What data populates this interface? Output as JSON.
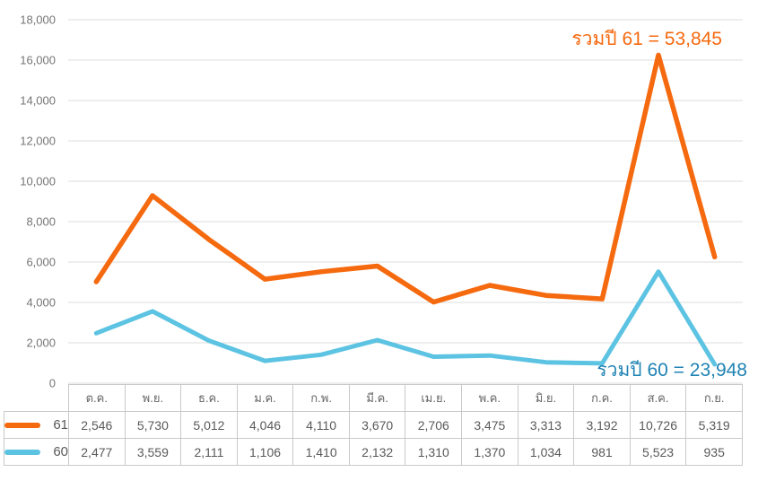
{
  "chart_data": {
    "type": "line",
    "stacked": true,
    "categories": [
      "ต.ค.",
      "พ.ย.",
      "ธ.ค.",
      "ม.ค.",
      "ก.พ.",
      "มี.ค.",
      "เม.ย.",
      "พ.ค.",
      "มิ.ย.",
      "ก.ค.",
      "ส.ค.",
      "ก.ย."
    ],
    "series": [
      {
        "name": "61",
        "color": "#F5690F",
        "values": [
          2546,
          5730,
          5012,
          4046,
          4110,
          3670,
          2706,
          3475,
          3313,
          3192,
          10726,
          5319
        ],
        "total": 53845
      },
      {
        "name": "60",
        "color": "#5CC3E2",
        "values": [
          2477,
          3559,
          2111,
          1106,
          1410,
          2132,
          1310,
          1370,
          1034,
          981,
          5523,
          935
        ],
        "total": 23948
      }
    ],
    "ylim": [
      0,
      18000
    ],
    "ytick_step": 2000,
    "ytick_labels": [
      "0",
      "2,000",
      "4,000",
      "6,000",
      "8,000",
      "10,000",
      "12,000",
      "14,000",
      "16,000",
      "18,000"
    ],
    "grid": "horizontal",
    "xlabel": "",
    "ylabel": "",
    "title": "",
    "legend_position": "table-left",
    "colors": {
      "grid": "#dcdcdc",
      "axis_text": "#757575"
    }
  },
  "annotations": {
    "total_61": {
      "text": "รวมปี 61 = 53,845",
      "color": "#F5690F"
    },
    "total_60": {
      "text": "รวมปี 60 = 23,948",
      "color": "#1F83B3"
    }
  },
  "table": {
    "months": [
      "ต.ค.",
      "พ.ย.",
      "ธ.ค.",
      "ม.ค.",
      "ก.พ.",
      "มี.ค.",
      "เม.ย.",
      "พ.ค.",
      "มิ.ย.",
      "ก.ค.",
      "ส.ค.",
      "ก.ย."
    ],
    "rows": [
      {
        "label": "61",
        "color": "#F5690F",
        "values": [
          "2,546",
          "5,730",
          "5,012",
          "4,046",
          "4,110",
          "3,670",
          "2,706",
          "3,475",
          "3,313",
          "3,192",
          "10,726",
          "5,319"
        ]
      },
      {
        "label": "60",
        "color": "#5CC3E2",
        "values": [
          "2,477",
          "3,559",
          "2,111",
          "1,106",
          "1,410",
          "2,132",
          "1,310",
          "1,370",
          "1,034",
          "981",
          "5,523",
          "935"
        ]
      }
    ]
  }
}
